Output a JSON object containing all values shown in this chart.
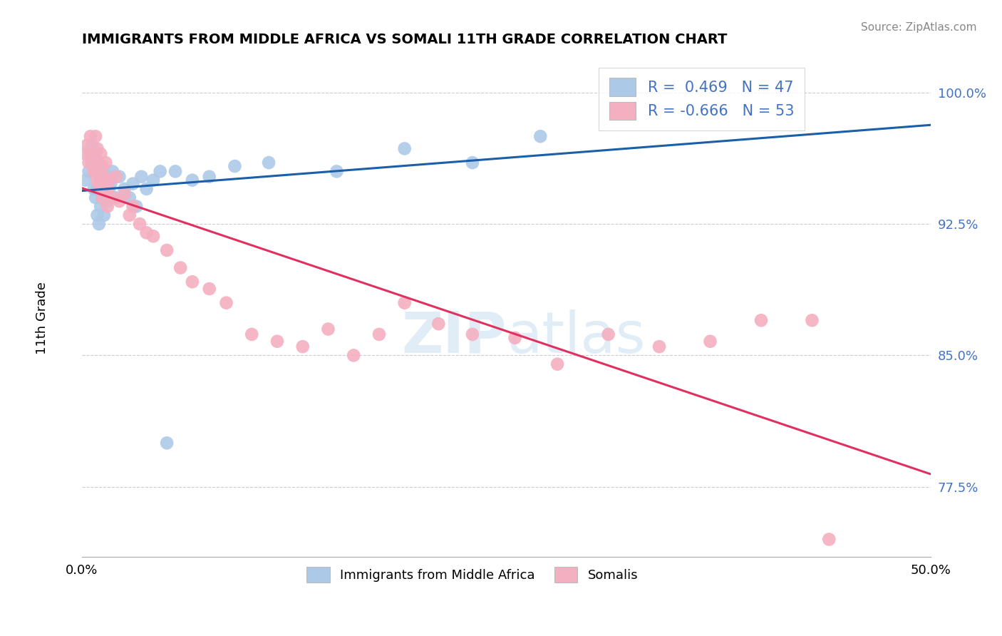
{
  "title": "IMMIGRANTS FROM MIDDLE AFRICA VS SOMALI 11TH GRADE CORRELATION CHART",
  "source": "Source: ZipAtlas.com",
  "ylabel": "11th Grade",
  "y_ticks": [
    0.775,
    0.85,
    0.925,
    1.0
  ],
  "y_tick_labels": [
    "77.5%",
    "85.0%",
    "92.5%",
    "100.0%"
  ],
  "xlim": [
    0.0,
    0.5
  ],
  "ylim": [
    0.735,
    1.02
  ],
  "legend_r_blue": "0.469",
  "legend_n_blue": "47",
  "legend_r_pink": "-0.666",
  "legend_n_pink": "53",
  "blue_color": "#adc9e8",
  "pink_color": "#f4afc0",
  "blue_line_color": "#1a5fa8",
  "pink_line_color": "#e03060",
  "blue_points_x": [
    0.002,
    0.004,
    0.005,
    0.006,
    0.006,
    0.007,
    0.007,
    0.008,
    0.008,
    0.009,
    0.009,
    0.009,
    0.01,
    0.01,
    0.01,
    0.011,
    0.011,
    0.012,
    0.012,
    0.013,
    0.013,
    0.014,
    0.015,
    0.015,
    0.016,
    0.017,
    0.018,
    0.02,
    0.022,
    0.025,
    0.028,
    0.03,
    0.032,
    0.035,
    0.038,
    0.042,
    0.046,
    0.05,
    0.055,
    0.065,
    0.075,
    0.09,
    0.11,
    0.15,
    0.19,
    0.23,
    0.27
  ],
  "blue_points_y": [
    0.95,
    0.955,
    0.965,
    0.96,
    0.97,
    0.945,
    0.958,
    0.94,
    0.965,
    0.93,
    0.945,
    0.96,
    0.925,
    0.945,
    0.96,
    0.935,
    0.95,
    0.94,
    0.955,
    0.93,
    0.948,
    0.942,
    0.938,
    0.952,
    0.945,
    0.948,
    0.955,
    0.94,
    0.952,
    0.945,
    0.94,
    0.948,
    0.935,
    0.952,
    0.945,
    0.95,
    0.955,
    0.8,
    0.955,
    0.95,
    0.952,
    0.958,
    0.96,
    0.955,
    0.968,
    0.96,
    0.975
  ],
  "pink_points_x": [
    0.002,
    0.003,
    0.004,
    0.005,
    0.006,
    0.007,
    0.007,
    0.008,
    0.008,
    0.009,
    0.009,
    0.01,
    0.01,
    0.011,
    0.011,
    0.012,
    0.012,
    0.013,
    0.014,
    0.015,
    0.015,
    0.016,
    0.018,
    0.02,
    0.022,
    0.025,
    0.028,
    0.03,
    0.034,
    0.038,
    0.042,
    0.05,
    0.058,
    0.065,
    0.075,
    0.085,
    0.1,
    0.115,
    0.13,
    0.145,
    0.16,
    0.175,
    0.19,
    0.21,
    0.23,
    0.255,
    0.28,
    0.31,
    0.34,
    0.37,
    0.4,
    0.43,
    0.44
  ],
  "pink_points_y": [
    0.965,
    0.97,
    0.96,
    0.975,
    0.965,
    0.96,
    0.955,
    0.975,
    0.955,
    0.968,
    0.95,
    0.96,
    0.948,
    0.965,
    0.945,
    0.958,
    0.94,
    0.952,
    0.96,
    0.945,
    0.935,
    0.95,
    0.94,
    0.952,
    0.938,
    0.942,
    0.93,
    0.935,
    0.925,
    0.92,
    0.918,
    0.91,
    0.9,
    0.892,
    0.888,
    0.88,
    0.862,
    0.858,
    0.855,
    0.865,
    0.85,
    0.862,
    0.88,
    0.868,
    0.862,
    0.86,
    0.845,
    0.862,
    0.855,
    0.858,
    0.87,
    0.87,
    0.745
  ]
}
